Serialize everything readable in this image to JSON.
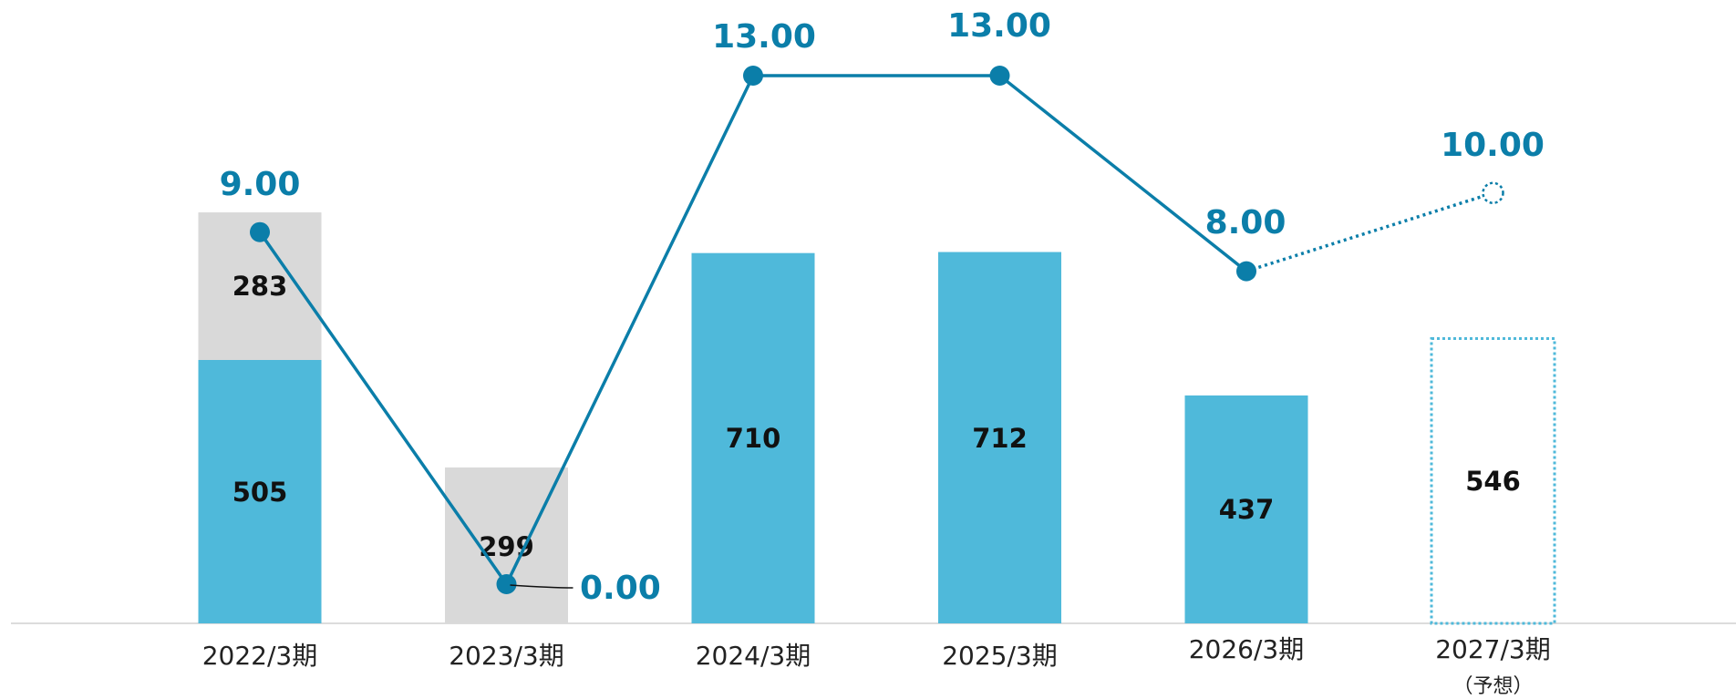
{
  "chart_data": {
    "type": "bar",
    "categories": [
      "2022/3期",
      "2023/3期",
      "2024/3期",
      "2025/3期",
      "2026/3期",
      "2027/3期"
    ],
    "category_notes": [
      "",
      "",
      "",
      "",
      "",
      "（予想）"
    ],
    "forecast_index": 5,
    "bar_series": [
      {
        "name": "",
        "color": "#4fb9da",
        "values": [
          505,
          0,
          710,
          712,
          437,
          546
        ]
      },
      {
        "name": "",
        "color": "#d9d9d9",
        "values": [
          283,
          299,
          0,
          0,
          0,
          0
        ]
      }
    ],
    "bar_labels": [
      [
        505,
        283
      ],
      [
        299
      ],
      [
        710
      ],
      [
        712
      ],
      [
        437
      ],
      [
        546
      ]
    ],
    "line_series": {
      "name": "",
      "color": "#0b7ea9",
      "values": [
        9.0,
        0.0,
        13.0,
        13.0,
        8.0,
        10.0
      ],
      "labels": [
        "9.00",
        "0.00",
        "13.00",
        "13.00",
        "8.00",
        "10.00"
      ]
    },
    "ylim_bars": [
      0,
      800
    ],
    "ylim_line": [
      0,
      15
    ],
    "grid": false,
    "legend": "none"
  }
}
